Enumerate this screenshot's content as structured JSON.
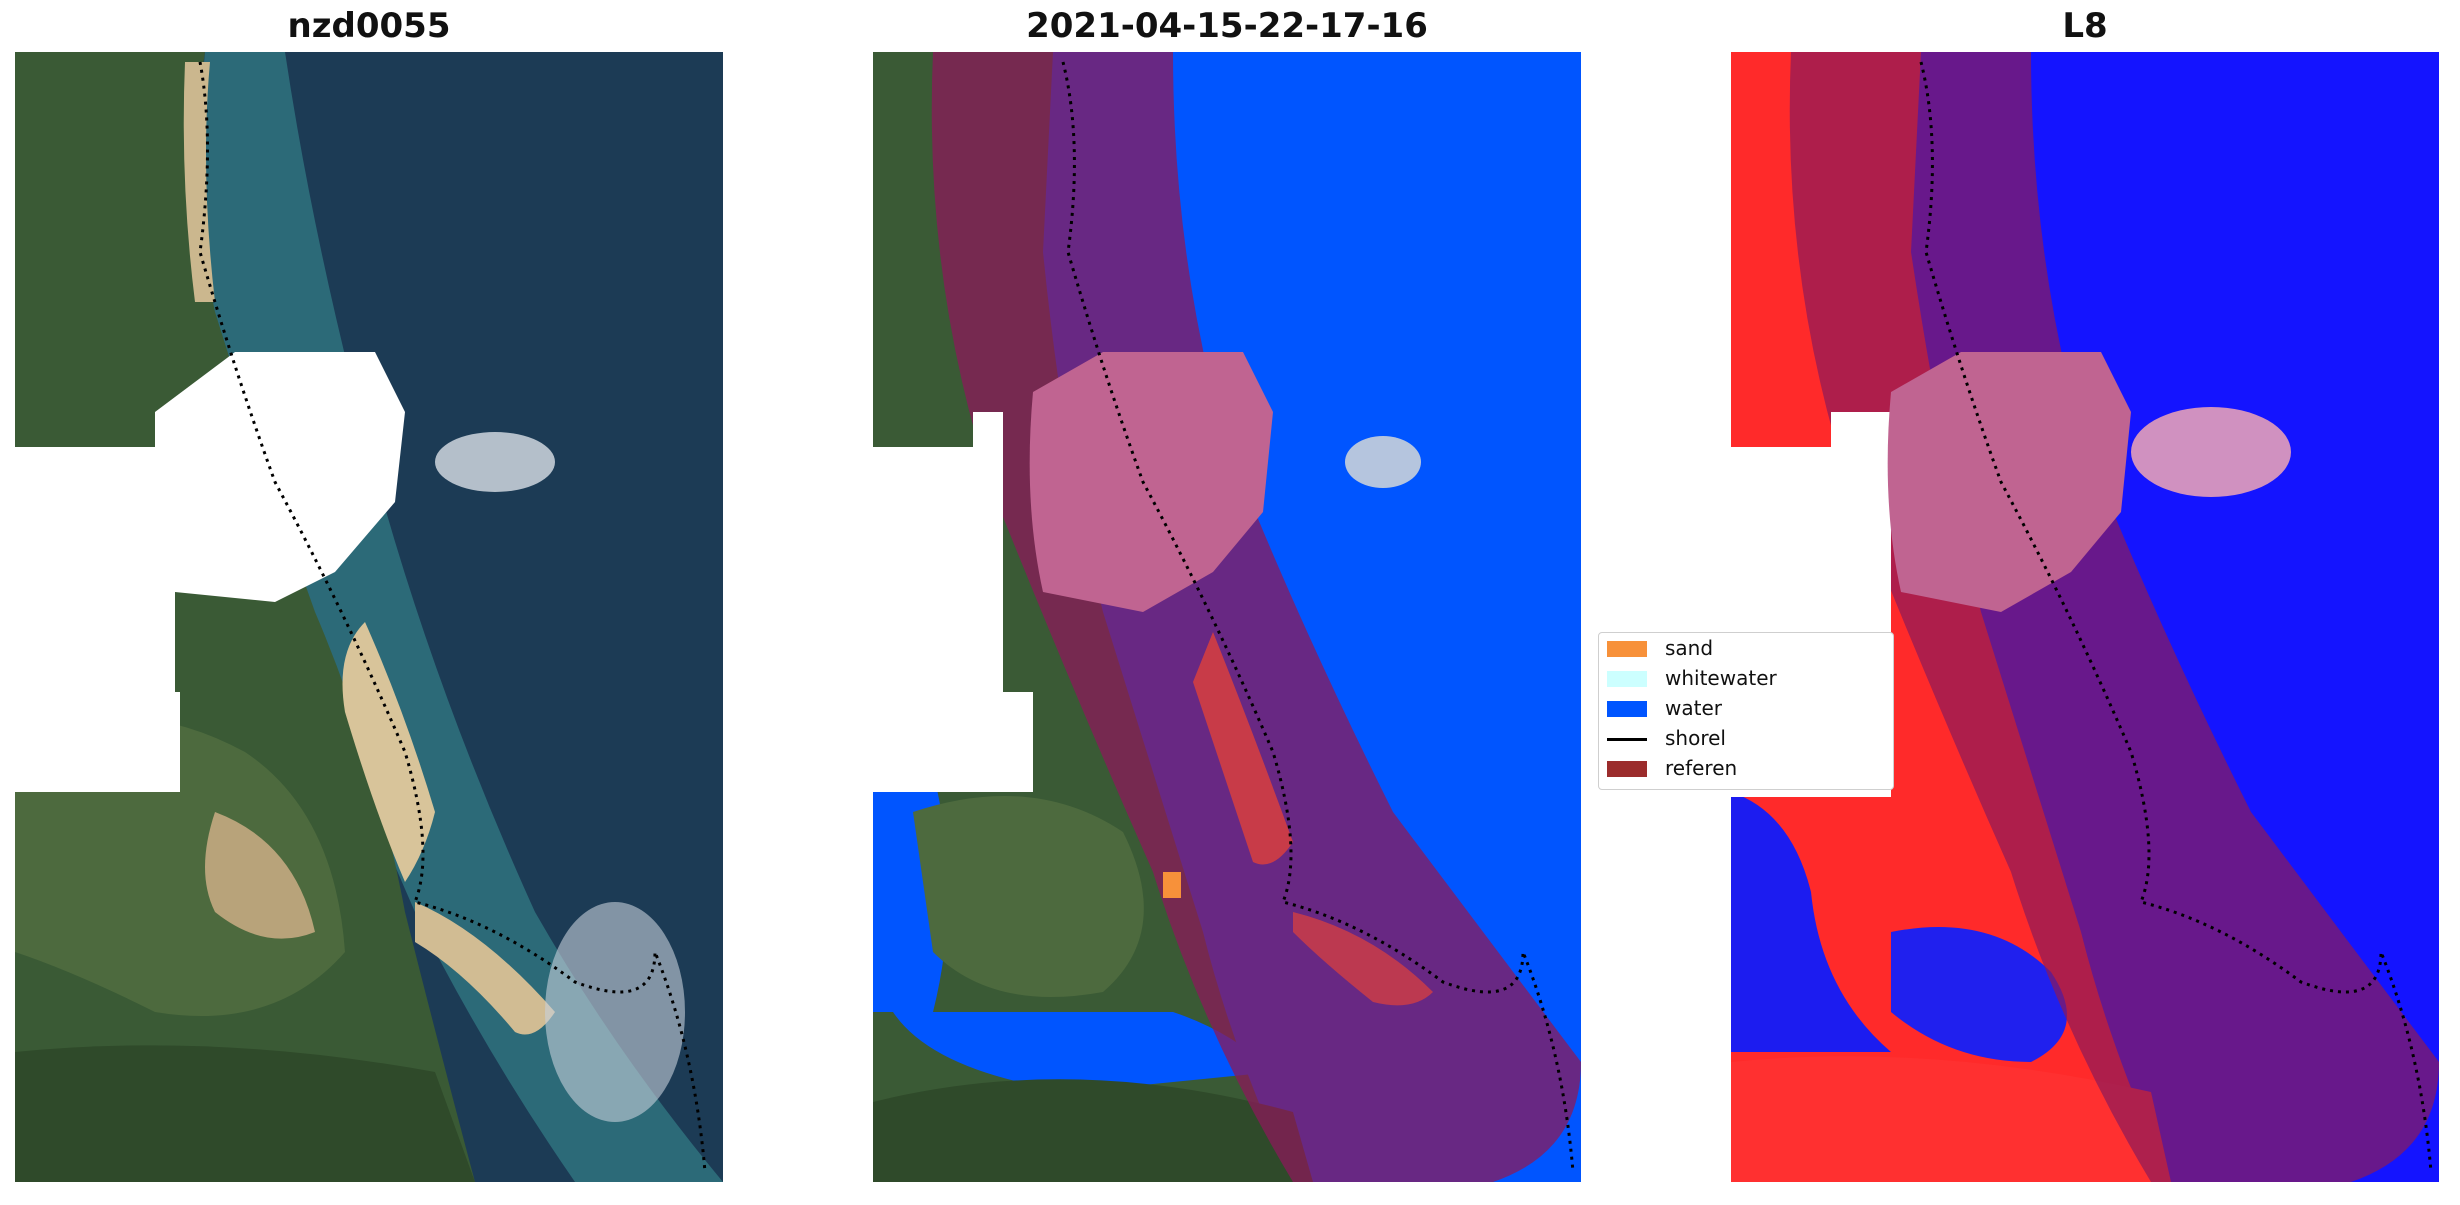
{
  "figure": {
    "panels": [
      {
        "title": "nzd0055"
      },
      {
        "title": "2021-04-15-22-17-16"
      },
      {
        "title": "L8"
      }
    ]
  },
  "legend": {
    "items": [
      {
        "label": "sand",
        "color": "#f7913a",
        "kind": "patch"
      },
      {
        "label": "whitewater",
        "color": "#ccffff",
        "kind": "patch"
      },
      {
        "label": "water",
        "color": "#0055ff",
        "kind": "patch"
      },
      {
        "label": "shorel",
        "color": "#000000",
        "kind": "line"
      },
      {
        "label": "referen",
        "color": "#9b2c2c",
        "kind": "patch"
      }
    ]
  },
  "colors": {
    "ocean": "#1c3b55",
    "water_class": "#0055ff",
    "reference_buffer": "#8b1a5a",
    "cloud_mask": "#ffffff",
    "index_positive": "#ff2a2a",
    "index_negative": "#1414ff"
  }
}
